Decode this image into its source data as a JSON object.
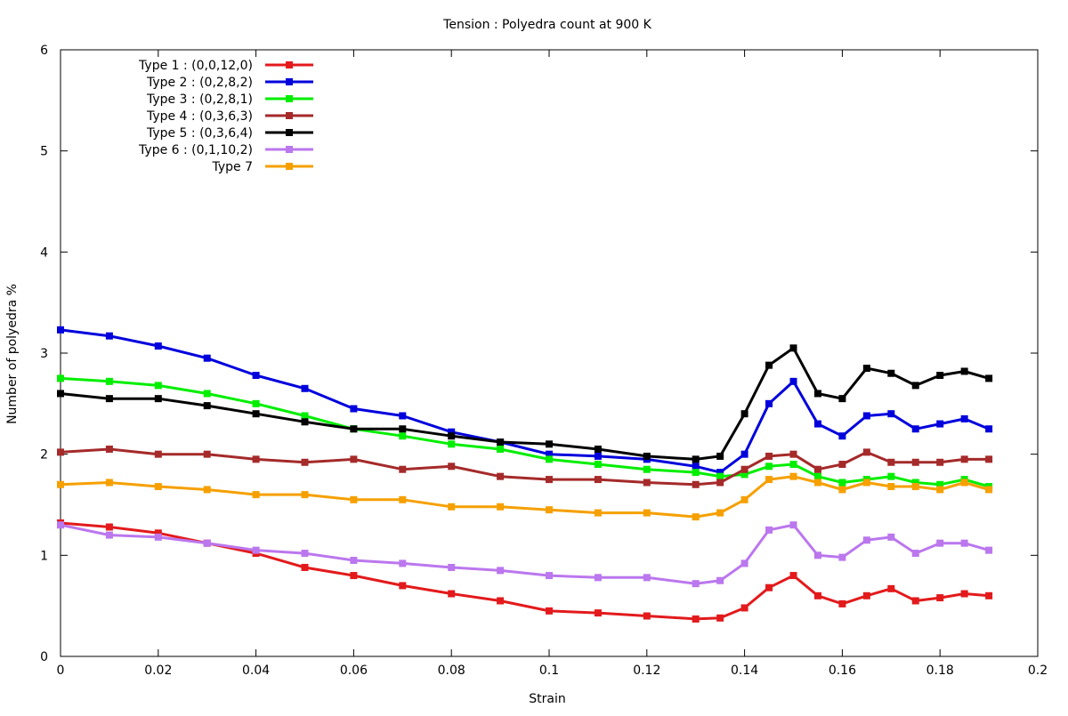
{
  "chart_data": {
    "type": "line",
    "title": "Tension : Polyedra count at 900 K",
    "xlabel": "Strain",
    "ylabel": "Number of polyedra %",
    "xlim": [
      0,
      0.2
    ],
    "ylim": [
      0,
      6
    ],
    "xticks": [
      0,
      0.02,
      0.04,
      0.06,
      0.08,
      0.1,
      0.12,
      0.14,
      0.16,
      0.18,
      0.2
    ],
    "xtick_labels": [
      "0",
      "0.02",
      "0.04",
      "0.06",
      "0.08",
      "0.1",
      "0.12",
      "0.14",
      "0.16",
      "0.18",
      "0.2"
    ],
    "yticks": [
      0,
      1,
      2,
      3,
      4,
      5,
      6
    ],
    "ytick_labels": [
      "0",
      "1",
      "2",
      "3",
      "4",
      "5",
      "6"
    ],
    "grid": false,
    "legend_position": "top-left",
    "x": [
      0,
      0.01,
      0.02,
      0.03,
      0.04,
      0.05,
      0.06,
      0.07,
      0.08,
      0.09,
      0.1,
      0.11,
      0.12,
      0.13,
      0.135,
      0.14,
      0.145,
      0.15,
      0.155,
      0.16,
      0.165,
      0.17,
      0.175,
      0.18,
      0.185,
      0.19
    ],
    "series": [
      {
        "name": "Type 1 : (0,0,12,0)",
        "color": "#e31a1c",
        "values": [
          1.32,
          1.28,
          1.22,
          1.12,
          1.02,
          0.88,
          0.8,
          0.7,
          0.62,
          0.55,
          0.45,
          0.43,
          0.4,
          0.37,
          0.38,
          0.48,
          0.68,
          0.8,
          0.6,
          0.52,
          0.6,
          0.67,
          0.55,
          0.58,
          0.62,
          0.6
        ]
      },
      {
        "name": "Type 2 : (0,2,8,2)",
        "color": "#0000dd",
        "values": [
          3.23,
          3.17,
          3.07,
          2.95,
          2.78,
          2.65,
          2.45,
          2.38,
          2.22,
          2.12,
          2.0,
          1.98,
          1.95,
          1.88,
          1.82,
          2.0,
          2.5,
          2.72,
          2.3,
          2.18,
          2.38,
          2.4,
          2.25,
          2.3,
          2.35,
          2.25
        ]
      },
      {
        "name": "Type 3 : (0,2,8,1)",
        "color": "#00ee00",
        "values": [
          2.75,
          2.72,
          2.68,
          2.6,
          2.5,
          2.38,
          2.25,
          2.18,
          2.1,
          2.05,
          1.95,
          1.9,
          1.85,
          1.82,
          1.78,
          1.8,
          1.88,
          1.9,
          1.78,
          1.72,
          1.75,
          1.78,
          1.72,
          1.7,
          1.75,
          1.68
        ]
      },
      {
        "name": "Type 4 : (0,3,6,3)",
        "color": "#a52a2a",
        "values": [
          2.02,
          2.05,
          2.0,
          2.0,
          1.95,
          1.92,
          1.95,
          1.85,
          1.88,
          1.78,
          1.75,
          1.75,
          1.72,
          1.7,
          1.72,
          1.85,
          1.98,
          2.0,
          1.85,
          1.9,
          2.02,
          1.92,
          1.92,
          1.92,
          1.95,
          1.95
        ]
      },
      {
        "name": "Type 5 : (0,3,6,4)",
        "color": "#000000",
        "values": [
          2.6,
          2.55,
          2.55,
          2.48,
          2.4,
          2.32,
          2.25,
          2.25,
          2.18,
          2.12,
          2.1,
          2.05,
          1.98,
          1.95,
          1.98,
          2.4,
          2.88,
          3.05,
          2.6,
          2.55,
          2.85,
          2.8,
          2.68,
          2.78,
          2.82,
          2.75
        ]
      },
      {
        "name": "Type 6 : (0,1,10,2)",
        "color": "#bb77ee",
        "values": [
          1.3,
          1.2,
          1.18,
          1.12,
          1.05,
          1.02,
          0.95,
          0.92,
          0.88,
          0.85,
          0.8,
          0.78,
          0.78,
          0.72,
          0.75,
          0.92,
          1.25,
          1.3,
          1.0,
          0.98,
          1.15,
          1.18,
          1.02,
          1.12,
          1.12,
          1.05
        ]
      },
      {
        "name": "Type 7",
        "color": "#f5a000",
        "values": [
          1.7,
          1.72,
          1.68,
          1.65,
          1.6,
          1.6,
          1.55,
          1.55,
          1.48,
          1.48,
          1.45,
          1.42,
          1.42,
          1.38,
          1.42,
          1.55,
          1.75,
          1.78,
          1.72,
          1.65,
          1.72,
          1.68,
          1.68,
          1.65,
          1.72,
          1.65
        ]
      }
    ]
  }
}
